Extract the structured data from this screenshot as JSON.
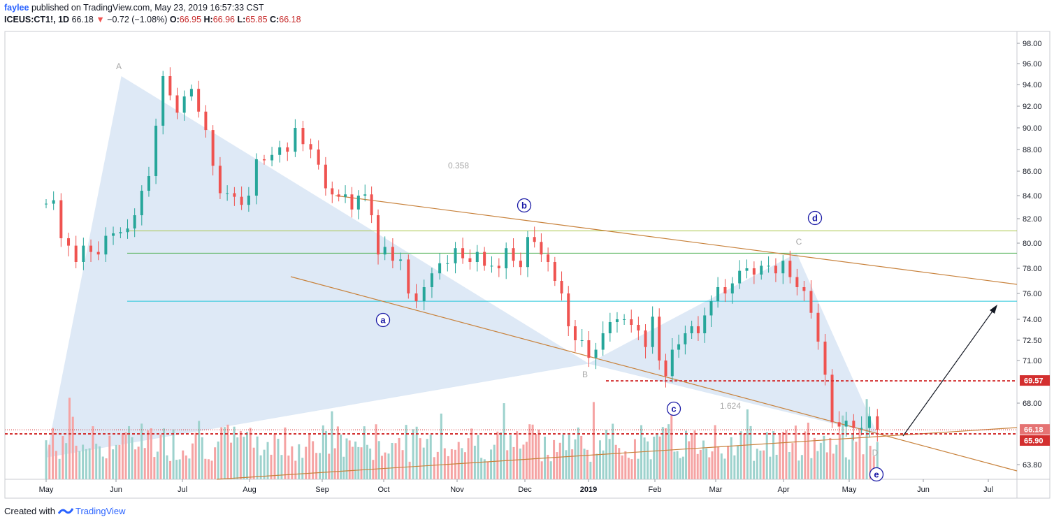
{
  "header": {
    "user": "faylee",
    "published": "published on TradingView.com, May 23, 2019 16:57:33 CST",
    "symbol": "ICEUS:CT1!, 1D",
    "last": "66.18",
    "down_glyph": "▼",
    "change": "−0.72 (−1.08%)",
    "o_label": "O:",
    "o": "66.95",
    "h_label": "H:",
    "h": "66.96",
    "l_label": "L:",
    "l": "65.85",
    "c_label": "C:",
    "c": "66.18"
  },
  "footer": {
    "created": "Created with",
    "brand": "TradingView"
  },
  "colors": {
    "up": "#26a69a",
    "down": "#ef5350",
    "vol_up": "#9dd2cd",
    "vol_down": "#f5a3a3",
    "pattern_fill": "#dce8f5",
    "channel": "#c8823c",
    "fib_yellow": "#a7c545",
    "fib_green": "#4caf50",
    "fib_teal": "#26c6da",
    "dashed": "#d32f2f",
    "wave_label": "#1a1aa6",
    "point_label": "#a8a8a8"
  },
  "chart_data": {
    "type": "candlestick",
    "y_axis_ticks": [
      "98.00",
      "96.00",
      "94.00",
      "92.00",
      "90.00",
      "88.00",
      "86.00",
      "84.00",
      "82.00",
      "80.00",
      "78.00",
      "76.00",
      "74.00",
      "72.50",
      "71.00",
      "68.00",
      "63.80"
    ],
    "y_tick_values": [
      98,
      96,
      94,
      92,
      90,
      88,
      86,
      84,
      82,
      80,
      78,
      76,
      74,
      72.5,
      71,
      68,
      63.8
    ],
    "x_axis_labels": [
      "May",
      "Jun",
      "Jul",
      "Aug",
      "Sep",
      "Oct",
      "Nov",
      "Dec",
      "2019",
      "Feb",
      "Mar",
      "Apr",
      "May",
      "Jun",
      "Jul"
    ],
    "x_axis_bold": [
      false,
      false,
      false,
      false,
      false,
      false,
      false,
      false,
      true,
      false,
      false,
      false,
      false,
      false,
      false
    ],
    "price_badges": [
      {
        "label": "69.57",
        "value": 69.57
      },
      {
        "label": "66.18",
        "value": 66.18
      },
      {
        "label": "65.90",
        "value": 65.9
      }
    ],
    "fib_levels": [
      81.0,
      79.2,
      75.4
    ],
    "dashed_levels": [
      69.57,
      65.9
    ],
    "current_price": 66.18,
    "wave_labels": [
      "a",
      "b",
      "c",
      "d",
      "e"
    ],
    "point_labels": [
      "A",
      "B",
      "C",
      "D"
    ],
    "ratio_labels": [
      "0.358",
      "1.624"
    ],
    "pivots": {
      "X": {
        "month_index": 0.0,
        "price": 65.5
      },
      "A": {
        "month_index": 1.08,
        "price": 94.8
      },
      "B": {
        "month_index": 8.0,
        "price": 70.8
      },
      "C": {
        "month_index": 11.2,
        "price": 79.2
      },
      "D": {
        "month_index": 12.38,
        "price": 65.9
      }
    },
    "closes": [
      83.3,
      83.6,
      80.4,
      79.8,
      78.5,
      79.8,
      79.3,
      79.1,
      80.6,
      80.8,
      80.9,
      81.2,
      82.3,
      84.4,
      85.6,
      90.2,
      94.8,
      93.0,
      91.4,
      92.9,
      93.6,
      91.5,
      89.8,
      86.5,
      84.2,
      84.2,
      83.9,
      83.2,
      84.0,
      87.1,
      87.0,
      87.5,
      88.2,
      87.8,
      90.0,
      88.5,
      88.0,
      86.6,
      84.6,
      84.1,
      83.9,
      84.1,
      82.8,
      84.0,
      84.1,
      82.3,
      79.1,
      79.7,
      78.6,
      78.7,
      76.0,
      75.4,
      76.5,
      77.6,
      78.4,
      78.4,
      79.6,
      78.8,
      78.5,
      79.3,
      78.2,
      78.2,
      78.0,
      79.6,
      78.6,
      78.1,
      80.5,
      80.1,
      79.1,
      78.5,
      77.0,
      76.0,
      73.5,
      72.5,
      72.5,
      71.2,
      71.8,
      73.0,
      73.8,
      74.0,
      74.0,
      73.6,
      73.2,
      72.0,
      74.2,
      71.0,
      69.9,
      71.8,
      72.2,
      73.0,
      73.5,
      73.0,
      74.3,
      75.4,
      76.5,
      76.0,
      76.8,
      77.8,
      78.0,
      77.5,
      78.2,
      78.2,
      77.6,
      78.6,
      77.3,
      76.5,
      76.2,
      74.5,
      72.4,
      70.0,
      66.7,
      66.4,
      66.8,
      66.3,
      66.3,
      67.1,
      66.18
    ],
    "volume_level_range": [
      0,
      1
    ]
  }
}
